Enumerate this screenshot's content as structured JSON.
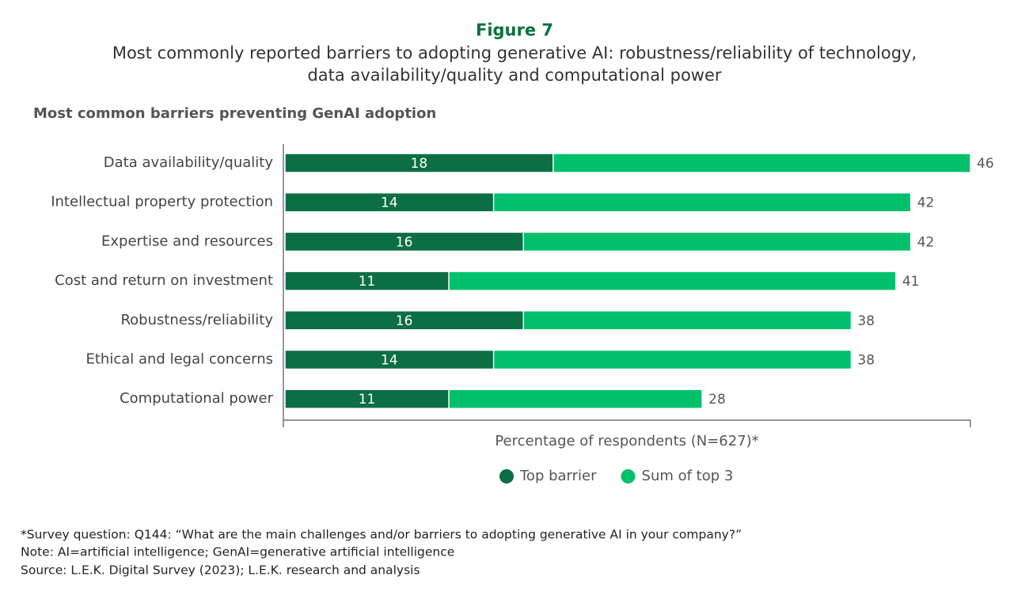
{
  "chart_data": {
    "type": "bar",
    "orientation": "horizontal",
    "overlay": true,
    "title": "Figure 7",
    "subtitle": [
      "Most commonly reported barriers to adopting generative AI: robustness/reliability of technology,",
      "data availability/quality and computational power"
    ],
    "panel_title": "Most common barriers preventing GenAI adoption",
    "x_label": "Percentage of respondents (N=627)*",
    "categories": [
      "Data availability/quality",
      "Intellectual property protection",
      "Expertise and resources",
      "Cost and return on investment",
      "Robustness/reliability",
      "Ethical and legal concerns",
      "Computational power"
    ],
    "series": [
      {
        "name": "Top barrier",
        "color": "#0b6e45",
        "values": [
          18,
          14,
          16,
          11,
          16,
          14,
          11
        ]
      },
      {
        "name": "Sum of top 3",
        "color": "#00c06b",
        "values": [
          46,
          42,
          42,
          41,
          38,
          38,
          28
        ]
      }
    ],
    "xlim": [
      0,
      46
    ],
    "notes": [
      "*Survey question: Q144: “What are the main challenges and/or barriers to adopting generative AI in your company?”",
      "Note: AI=artificial intelligence; GenAI=generative artificial intelligence",
      "Source: L.E.K. Digital Survey (2023); L.E.K. research and analysis"
    ]
  }
}
